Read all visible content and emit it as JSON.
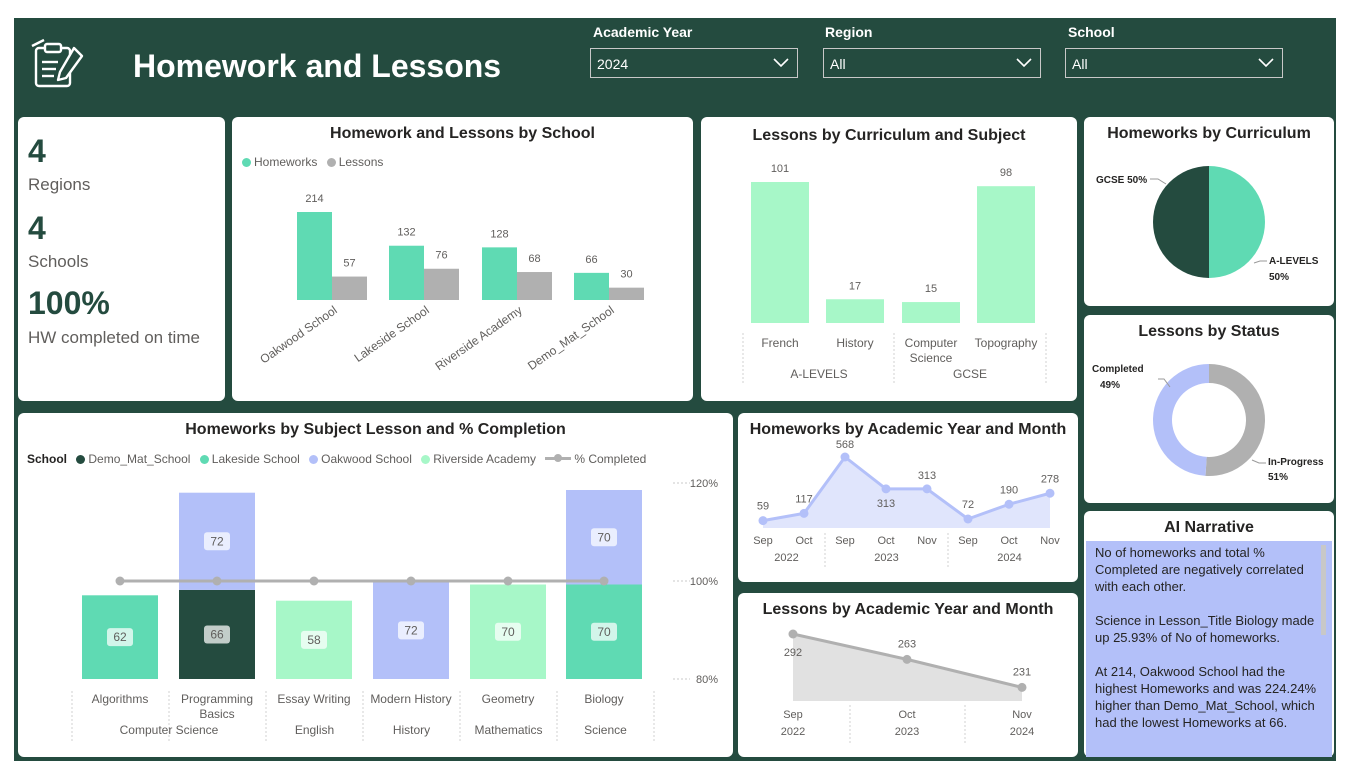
{
  "header": {
    "title": "Homework and Lessons",
    "logo_icon": "homework-clipboard-icon"
  },
  "filters": [
    {
      "label": "Academic Year",
      "value": "2024"
    },
    {
      "label": "Region",
      "value": "All"
    },
    {
      "label": "School",
      "value": "All"
    }
  ],
  "kpis": [
    {
      "value": "4",
      "label": "Regions"
    },
    {
      "value": "4",
      "label": "Schools"
    },
    {
      "value": "100%",
      "label": "HW completed on time"
    }
  ],
  "colors": {
    "dark_green": "#244b3f",
    "teal": "#5fdab3",
    "lavender": "#b3c0f9",
    "mint": "#a7f7c8",
    "gray": "#b0b0b0"
  },
  "chart_data": [
    {
      "id": "by_school",
      "type": "bar",
      "title": "Homework and Lessons by School",
      "categories": [
        "Oakwood School",
        "Lakeside School",
        "Riverside Academy",
        "Demo_Mat_School"
      ],
      "series": [
        {
          "name": "Homeworks",
          "values": [
            214,
            132,
            128,
            66
          ],
          "color": "#5fdab3"
        },
        {
          "name": "Lessons",
          "values": [
            57,
            76,
            68,
            30
          ],
          "color": "#b0b0b0"
        }
      ],
      "legend": "top-left"
    },
    {
      "id": "by_curriculum_subject",
      "type": "bar",
      "title": "Lessons by Curriculum and Subject",
      "categories": [
        "French",
        "History",
        "Computer Science",
        "Topography"
      ],
      "groups": [
        {
          "label": "A-LEVELS",
          "span": 2
        },
        {
          "label": "GCSE",
          "span": 2
        }
      ],
      "values": [
        101,
        17,
        15,
        98
      ]
    },
    {
      "id": "hw_by_curriculum",
      "type": "pie",
      "title": "Homeworks by Curriculum",
      "slices": [
        {
          "label": "GCSE",
          "value": 50,
          "text": "GCSE 50%",
          "color": "#244b3f"
        },
        {
          "label": "A-LEVELS",
          "value": 50,
          "text1": "A-LEVELS",
          "text2": "50%",
          "color": "#5fdab3"
        }
      ]
    },
    {
      "id": "lessons_by_status",
      "type": "pie",
      "title": "Lessons by Status",
      "slices": [
        {
          "label": "Completed",
          "value": 49,
          "text1": "Completed",
          "text2": "49%",
          "color": "#b3c0f9"
        },
        {
          "label": "In-Progress",
          "value": 51,
          "text1": "In-Progress",
          "text2": "51%",
          "color": "#b0b0b0"
        }
      ]
    },
    {
      "id": "hw_by_subject",
      "type": "bar",
      "title": "Homeworks by Subject Lesson and % Completion",
      "legend_title": "School",
      "legend": [
        {
          "name": "Demo_Mat_School",
          "color": "#244b3f"
        },
        {
          "name": "Lakeside School",
          "color": "#5fdab3"
        },
        {
          "name": "Oakwood School",
          "color": "#b3c0f9"
        },
        {
          "name": "Riverside Academy",
          "color": "#a7f7c8"
        },
        {
          "name": "% Completed",
          "color": "#b0b0b0",
          "kind": "line"
        }
      ],
      "categories": [
        "Algorithms",
        "Programming Basics",
        "Essay Writing",
        "Modern History",
        "Geometry",
        "Biology"
      ],
      "category_lines": [
        [
          "Algorithms"
        ],
        [
          "Programming",
          "Basics"
        ],
        [
          "Essay Writing"
        ],
        [
          "Modern History"
        ],
        [
          "Geometry"
        ],
        [
          "Biology"
        ]
      ],
      "groups": [
        {
          "label": "Computer Science",
          "span": 2
        },
        {
          "label": "English",
          "span": 1
        },
        {
          "label": "History",
          "span": 1
        },
        {
          "label": "Mathematics",
          "span": 1
        },
        {
          "label": "Science",
          "span": 1
        }
      ],
      "stacks": [
        [
          {
            "school": "Lakeside School",
            "value": 62
          }
        ],
        [
          {
            "school": "Demo_Mat_School",
            "value": 66
          },
          {
            "school": "Oakwood School",
            "value": 72
          }
        ],
        [
          {
            "school": "Riverside Academy",
            "value": 58
          }
        ],
        [
          {
            "school": "Oakwood School",
            "value": 72
          }
        ],
        [
          {
            "school": "Riverside Academy",
            "value": 70
          }
        ],
        [
          {
            "school": "Lakeside School",
            "value": 70
          },
          {
            "school": "Oakwood School",
            "value": 70
          }
        ]
      ],
      "pct_completed": [
        100,
        100,
        100,
        100,
        100,
        100
      ],
      "y2_ticks": [
        "120%",
        "100%",
        "80%"
      ],
      "y2lim": [
        80,
        120
      ]
    },
    {
      "id": "hw_by_year_month",
      "type": "area",
      "title": "Homeworks by Academic Year and Month",
      "x": [
        "Sep",
        "Oct",
        "Sep",
        "Oct",
        "Nov",
        "Sep",
        "Oct",
        "Nov"
      ],
      "years": [
        {
          "label": "2022",
          "span": 2
        },
        {
          "label": "2023",
          "span": 3
        },
        {
          "label": "2024",
          "span": 3
        }
      ],
      "values": [
        59,
        117,
        568,
        313,
        313,
        72,
        190,
        278
      ]
    },
    {
      "id": "lessons_by_year_month",
      "type": "area",
      "title": "Lessons by Academic Year and Month",
      "x": [
        "Sep",
        "Oct",
        "Nov"
      ],
      "years": [
        {
          "label": "2022",
          "span": 1
        },
        {
          "label": "2023",
          "span": 1
        },
        {
          "label": "2024",
          "span": 1
        }
      ],
      "values": [
        292,
        263,
        231
      ]
    }
  ],
  "narrative": {
    "title": "AI Narrative",
    "paragraphs": [
      "No of homeworks and total % Completed are negatively correlated with each other.",
      "Science in Lesson_Title Biology made up 25.93% of No of homeworks.",
      "At 214, Oakwood School had the highest Homeworks and was 224.24% higher than Demo_Mat_School, which had the lowest Homeworks at 66."
    ]
  }
}
